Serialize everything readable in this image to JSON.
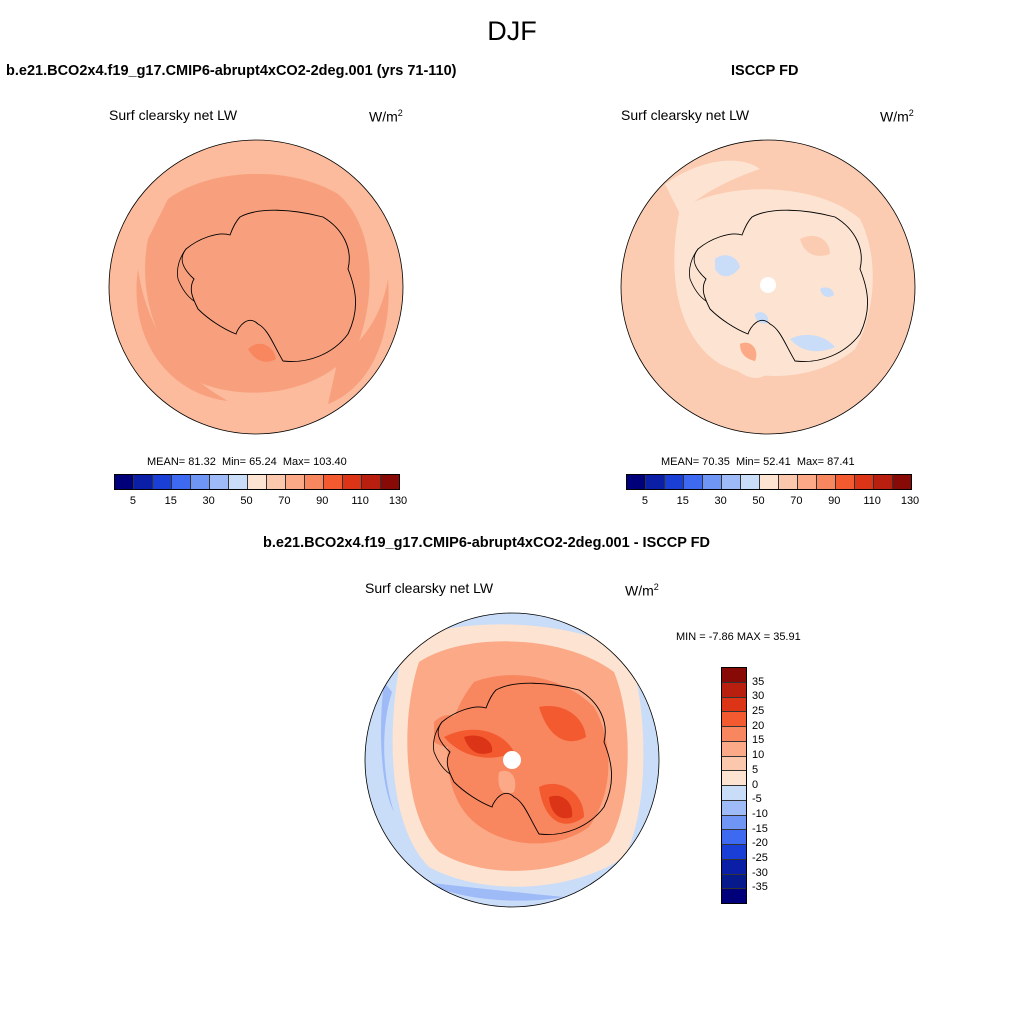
{
  "figure": {
    "season": "DJF"
  },
  "panels": {
    "model": {
      "title": "b.e21.BCO2x4.f19_g17.CMIP6-abrupt4xCO2-2deg.001 (yrs 71-110)",
      "variable": "Surf clearsky net LW",
      "units_base": "W/m",
      "units_exp": "2",
      "mean_label": "MEAN=",
      "mean": "81.32",
      "min_label": "Min=",
      "min": "65.24",
      "max_label": "Max=",
      "max": "103.40"
    },
    "obs": {
      "title": "ISCCP FD",
      "variable": "Surf clearsky net LW",
      "units_base": "W/m",
      "units_exp": "2",
      "mean_label": "MEAN=",
      "mean": "70.35",
      "min_label": "Min=",
      "min": "52.41",
      "max_label": "Max=",
      "max": "87.41"
    },
    "diff": {
      "title": "b.e21.BCO2x4.f19_g17.CMIP6-abrupt4xCO2-2deg.001 - ISCCP FD",
      "variable": "Surf clearsky net LW",
      "units_base": "W/m",
      "units_exp": "2",
      "stats_text": "MIN =  -7.86 MAX =  35.91"
    }
  },
  "colorbars": {
    "abs": {
      "ticks": [
        "5",
        "15",
        "30",
        "50",
        "70",
        "90",
        "110",
        "130"
      ],
      "colors": [
        "#00007a",
        "#0a1fa6",
        "#1a3fd6",
        "#3d6af0",
        "#6f95f5",
        "#9ebaf7",
        "#c9dcf8",
        "#fde4d2",
        "#fcc8ad",
        "#fba987",
        "#f8865e",
        "#f45a30",
        "#dc3416",
        "#b81f0f",
        "#870a06"
      ]
    },
    "diff": {
      "ticks": [
        "35",
        "30",
        "25",
        "20",
        "15",
        "10",
        "5",
        "0",
        "-5",
        "-10",
        "-15",
        "-20",
        "-25",
        "-30",
        "-35"
      ],
      "colors": [
        "#870a06",
        "#b81f0f",
        "#dc3416",
        "#f45a30",
        "#f8865e",
        "#fba987",
        "#fcc8ad",
        "#fde4d2",
        "#c9dcf8",
        "#9ebaf7",
        "#6f95f5",
        "#3d6af0",
        "#1a3fd6",
        "#0a1fa6",
        "#061a8c",
        "#00007a"
      ]
    },
    "map_fill": {
      "model_base": "#fbbb9c",
      "model_inner": "#f8a07e",
      "obs_base": "#fcccb2",
      "obs_light": "#fde4d2",
      "obs_blue": "#c9dcf8",
      "diff_outer_blue": "#c9dcf8",
      "diff_mid_blue": "#9ebaf7"
    }
  }
}
